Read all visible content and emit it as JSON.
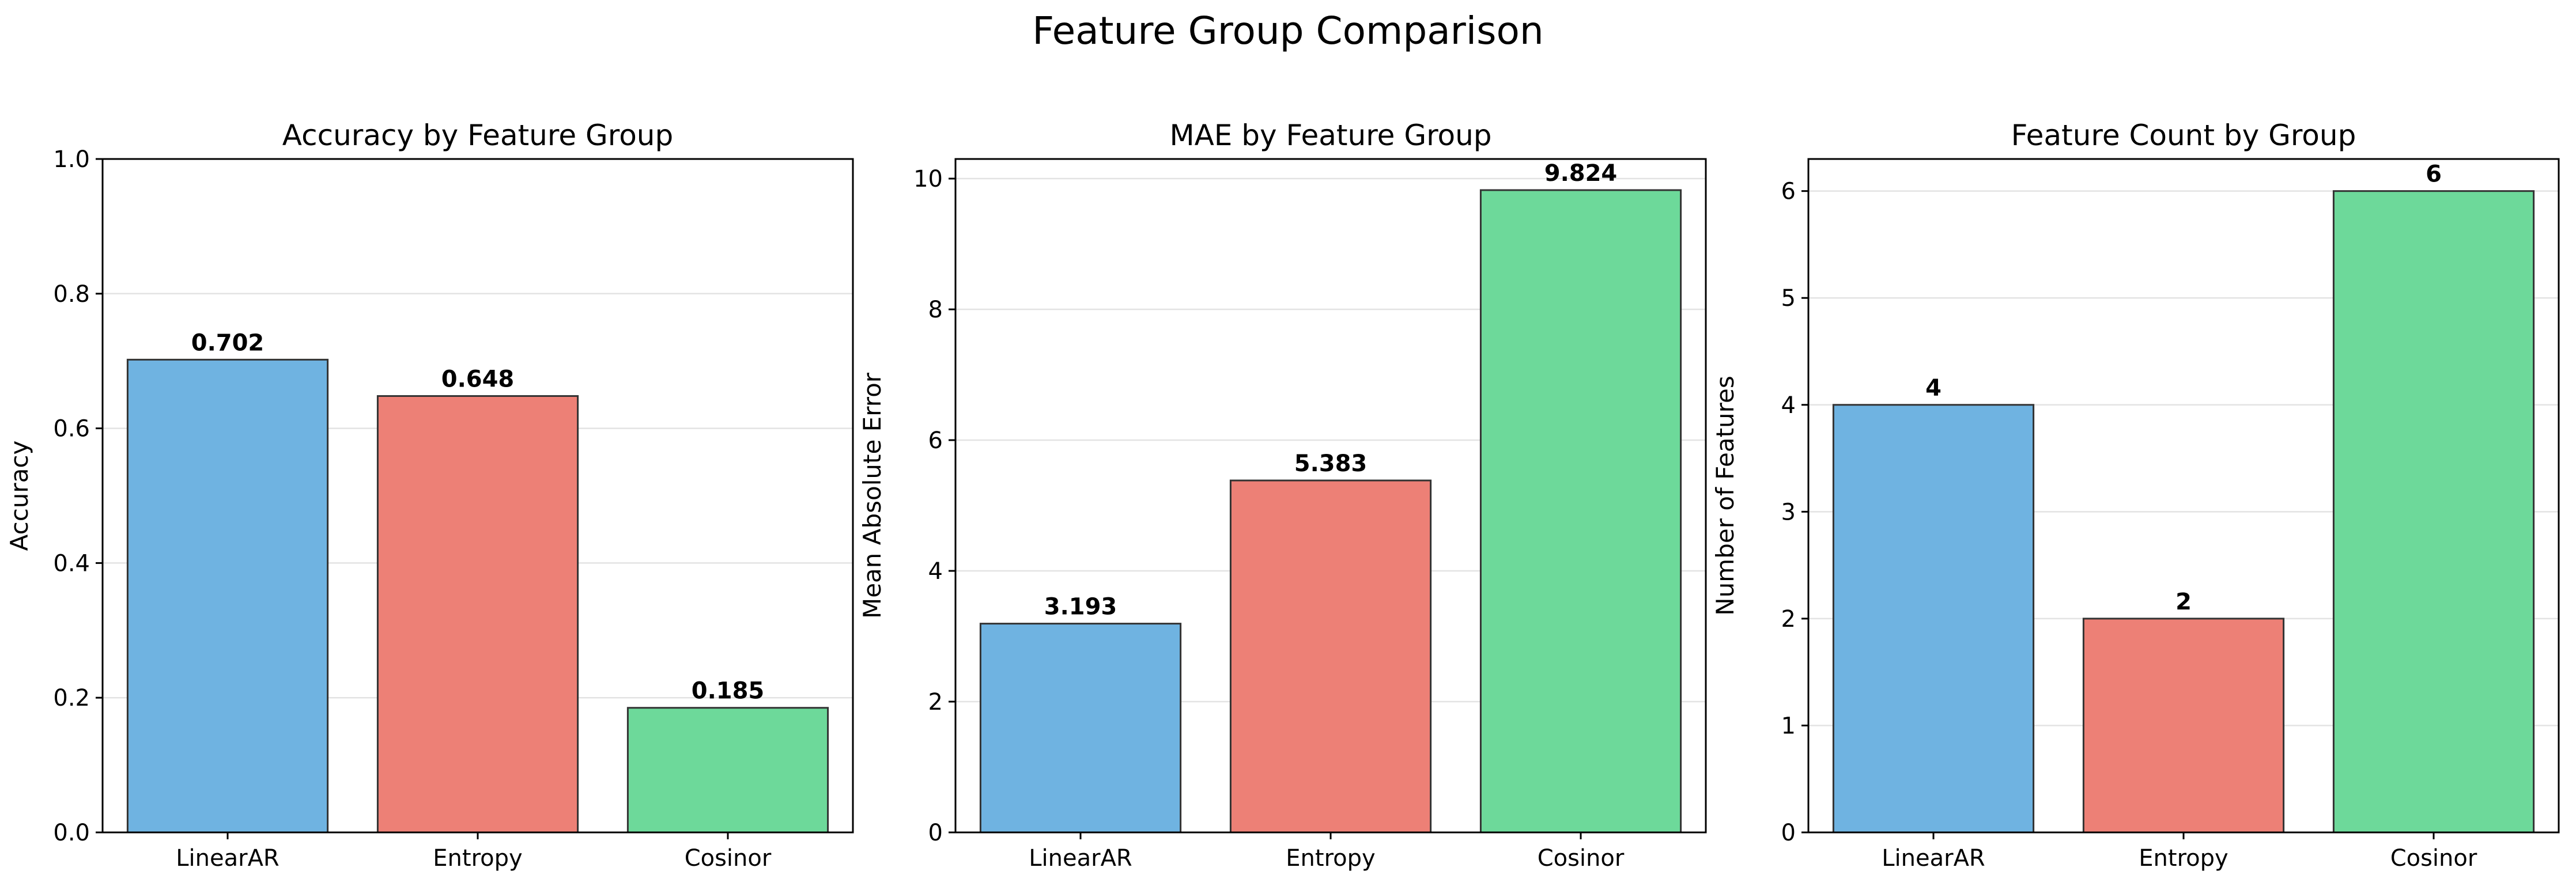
{
  "title": "Feature Group Comparison",
  "chart_data": [
    {
      "type": "bar",
      "title": "Accuracy by Feature Group",
      "xlabel": "",
      "ylabel": "Accuracy",
      "categories": [
        "LinearAR",
        "Entropy",
        "Cosinor"
      ],
      "values": [
        0.702,
        0.648,
        0.185
      ],
      "value_labels": [
        "0.702",
        "0.648",
        "0.185"
      ],
      "colors": [
        "#6fb3e1",
        "#ed8076",
        "#6dd99a"
      ],
      "ylim": [
        0,
        1.0
      ],
      "yticks": [
        0,
        0.2,
        0.4,
        0.6,
        0.8,
        1.0
      ],
      "ytick_labels": [
        "0.0",
        "0.2",
        "0.4",
        "0.6",
        "0.8",
        "1.0"
      ],
      "grid": "horizontal",
      "legend": "none"
    },
    {
      "type": "bar",
      "title": "MAE by Feature Group",
      "xlabel": "",
      "ylabel": "Mean Absolute Error",
      "categories": [
        "LinearAR",
        "Entropy",
        "Cosinor"
      ],
      "values": [
        3.193,
        5.383,
        9.824
      ],
      "value_labels": [
        "3.193",
        "5.383",
        "9.824"
      ],
      "colors": [
        "#6fb3e1",
        "#ed8076",
        "#6dd99a"
      ],
      "ylim": [
        0,
        10.3
      ],
      "yticks": [
        0,
        2,
        4,
        6,
        8,
        10
      ],
      "ytick_labels": [
        "0",
        "2",
        "4",
        "6",
        "8",
        "10"
      ],
      "grid": "horizontal",
      "legend": "none"
    },
    {
      "type": "bar",
      "title": "Feature Count by Group",
      "xlabel": "",
      "ylabel": "Number of Features",
      "categories": [
        "LinearAR",
        "Entropy",
        "Cosinor"
      ],
      "values": [
        4,
        2,
        6
      ],
      "value_labels": [
        "4",
        "2",
        "6"
      ],
      "colors": [
        "#6fb3e1",
        "#ed8076",
        "#6dd99a"
      ],
      "ylim": [
        0,
        6.3
      ],
      "yticks": [
        0,
        1,
        2,
        3,
        4,
        5,
        6
      ],
      "ytick_labels": [
        "0",
        "1",
        "2",
        "3",
        "4",
        "5",
        "6"
      ],
      "grid": "horizontal",
      "legend": "none"
    }
  ]
}
